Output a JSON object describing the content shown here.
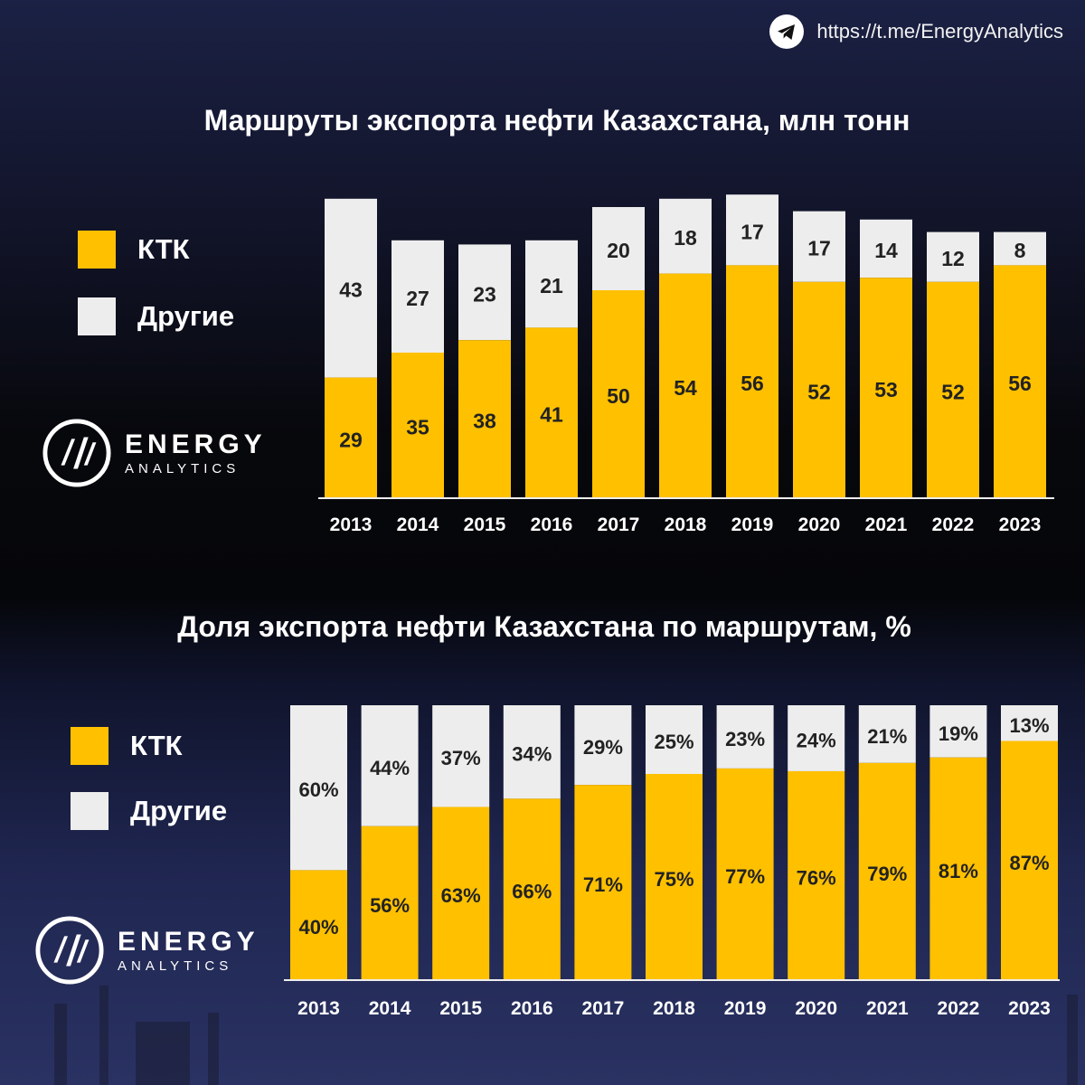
{
  "header": {
    "url": "https://t.me/EnergyAnalytics",
    "icon": "telegram-icon"
  },
  "logo": {
    "line1": "ENERGY",
    "line2": "ANALYTICS"
  },
  "colors": {
    "ktk": "#ffc000",
    "other": "#ededed",
    "text_dark": "#222222",
    "axis": "#ededed"
  },
  "chart_data": [
    {
      "type": "bar",
      "stacked": true,
      "title": "Маршруты экспорта нефти Казахстана, млн тонн",
      "categories": [
        "2013",
        "2014",
        "2015",
        "2016",
        "2017",
        "2018",
        "2019",
        "2020",
        "2021",
        "2022",
        "2023"
      ],
      "series": [
        {
          "name": "КТК",
          "values": [
            29,
            35,
            38,
            41,
            50,
            54,
            56,
            52,
            53,
            52,
            56
          ]
        },
        {
          "name": "Другие",
          "values": [
            43,
            27,
            23,
            21,
            20,
            18,
            17,
            17,
            14,
            12,
            8
          ]
        }
      ],
      "legend": "left",
      "grid": false
    },
    {
      "type": "bar",
      "stacked": true,
      "percent": true,
      "title": "Доля экспорта нефти Казахстана по маршрутам, %",
      "categories": [
        "2013",
        "2014",
        "2015",
        "2016",
        "2017",
        "2018",
        "2019",
        "2020",
        "2021",
        "2022",
        "2023"
      ],
      "series": [
        {
          "name": "КТК",
          "values": [
            40,
            56,
            63,
            66,
            71,
            75,
            77,
            76,
            79,
            81,
            87
          ]
        },
        {
          "name": "Другие",
          "values": [
            60,
            44,
            37,
            34,
            29,
            25,
            23,
            24,
            21,
            19,
            13
          ]
        }
      ],
      "legend": "left",
      "grid": false
    }
  ]
}
